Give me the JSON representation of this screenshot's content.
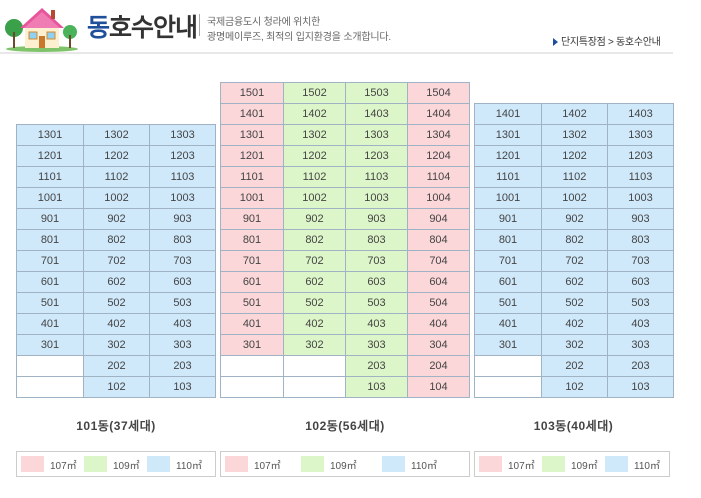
{
  "header": {
    "title_accent": "동",
    "title_rest": "호수안내",
    "subtitle_line1": "국제금융도시 청라에 위치한",
    "subtitle_line2": "광명메이루즈, 최적의 입지환경을 소개합니다.",
    "breadcrumb": {
      "parent": "단지특장점",
      "separator": ">",
      "current": "동호수안내"
    }
  },
  "colors": {
    "type_107": "#fbd7d9",
    "type_109": "#ddf6c9",
    "type_110": "#cfe9fb",
    "accent": "#1f4e9b"
  },
  "buildings": [
    {
      "label": "101동(37세대)",
      "top_floor": 13,
      "columns": [
        "110",
        "110",
        "110"
      ],
      "floors": [
        {
          "floor": 13,
          "units": [
            "1301",
            "1302",
            "1303"
          ]
        },
        {
          "floor": 12,
          "units": [
            "1201",
            "1202",
            "1203"
          ]
        },
        {
          "floor": 11,
          "units": [
            "1101",
            "1102",
            "1103"
          ]
        },
        {
          "floor": 10,
          "units": [
            "1001",
            "1002",
            "1003"
          ]
        },
        {
          "floor": 9,
          "units": [
            "901",
            "902",
            "903"
          ]
        },
        {
          "floor": 8,
          "units": [
            "801",
            "802",
            "803"
          ]
        },
        {
          "floor": 7,
          "units": [
            "701",
            "702",
            "703"
          ]
        },
        {
          "floor": 6,
          "units": [
            "601",
            "602",
            "603"
          ]
        },
        {
          "floor": 5,
          "units": [
            "501",
            "502",
            "503"
          ]
        },
        {
          "floor": 4,
          "units": [
            "401",
            "402",
            "403"
          ]
        },
        {
          "floor": 3,
          "units": [
            "301",
            "302",
            "303"
          ]
        },
        {
          "floor": 2,
          "units": [
            "",
            "202",
            "203"
          ]
        },
        {
          "floor": 1,
          "units": [
            "",
            "102",
            "103"
          ]
        }
      ]
    },
    {
      "label": "102동(56세대)",
      "top_floor": 15,
      "columns": [
        "107",
        "109",
        "109",
        "107"
      ],
      "floors": [
        {
          "floor": 15,
          "units": [
            "1501",
            "1502",
            "1503",
            "1504"
          ]
        },
        {
          "floor": 14,
          "units": [
            "1401",
            "1402",
            "1403",
            "1404"
          ]
        },
        {
          "floor": 13,
          "units": [
            "1301",
            "1302",
            "1303",
            "1304"
          ]
        },
        {
          "floor": 12,
          "units": [
            "1201",
            "1202",
            "1203",
            "1204"
          ]
        },
        {
          "floor": 11,
          "units": [
            "1101",
            "1102",
            "1103",
            "1104"
          ]
        },
        {
          "floor": 10,
          "units": [
            "1001",
            "1002",
            "1003",
            "1004"
          ]
        },
        {
          "floor": 9,
          "units": [
            "901",
            "902",
            "903",
            "904"
          ]
        },
        {
          "floor": 8,
          "units": [
            "801",
            "802",
            "803",
            "804"
          ]
        },
        {
          "floor": 7,
          "units": [
            "701",
            "702",
            "703",
            "704"
          ]
        },
        {
          "floor": 6,
          "units": [
            "601",
            "602",
            "603",
            "604"
          ]
        },
        {
          "floor": 5,
          "units": [
            "501",
            "502",
            "503",
            "504"
          ]
        },
        {
          "floor": 4,
          "units": [
            "401",
            "402",
            "403",
            "404"
          ]
        },
        {
          "floor": 3,
          "units": [
            "301",
            "302",
            "303",
            "304"
          ]
        },
        {
          "floor": 2,
          "units": [
            "",
            "",
            "203",
            "204"
          ]
        },
        {
          "floor": 1,
          "units": [
            "",
            "",
            "103",
            "104"
          ]
        }
      ]
    },
    {
      "label": "103동(40세대)",
      "top_floor": 14,
      "columns": [
        "110",
        "110",
        "110"
      ],
      "floors": [
        {
          "floor": 14,
          "units": [
            "1401",
            "1402",
            "1403"
          ]
        },
        {
          "floor": 13,
          "units": [
            "1301",
            "1302",
            "1303"
          ]
        },
        {
          "floor": 12,
          "units": [
            "1201",
            "1202",
            "1203"
          ]
        },
        {
          "floor": 11,
          "units": [
            "1101",
            "1102",
            "1103"
          ]
        },
        {
          "floor": 10,
          "units": [
            "1001",
            "1002",
            "1003"
          ]
        },
        {
          "floor": 9,
          "units": [
            "901",
            "902",
            "903"
          ]
        },
        {
          "floor": 8,
          "units": [
            "801",
            "802",
            "803"
          ]
        },
        {
          "floor": 7,
          "units": [
            "701",
            "702",
            "703"
          ]
        },
        {
          "floor": 6,
          "units": [
            "601",
            "602",
            "603"
          ]
        },
        {
          "floor": 5,
          "units": [
            "501",
            "502",
            "503"
          ]
        },
        {
          "floor": 4,
          "units": [
            "401",
            "402",
            "403"
          ]
        },
        {
          "floor": 3,
          "units": [
            "301",
            "302",
            "303"
          ]
        },
        {
          "floor": 2,
          "units": [
            "",
            "202",
            "203"
          ]
        },
        {
          "floor": 1,
          "units": [
            "",
            "102",
            "103"
          ]
        }
      ]
    }
  ],
  "legend": [
    {
      "type": "107",
      "label": "107㎡"
    },
    {
      "type": "109",
      "label": "109㎡"
    },
    {
      "type": "110",
      "label": "110㎡"
    }
  ]
}
